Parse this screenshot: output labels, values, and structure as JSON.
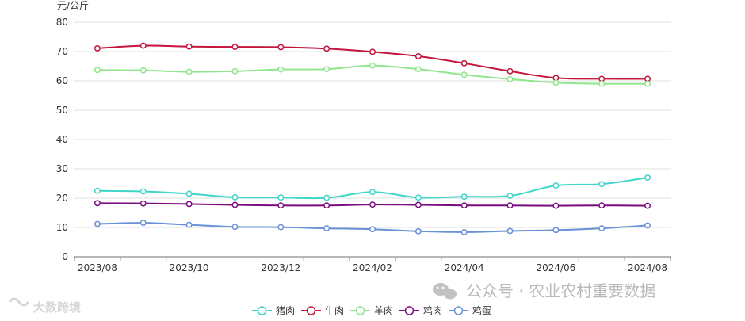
{
  "chart_data": {
    "type": "line",
    "title": "",
    "xlabel": "",
    "ylabel": "元/公斤",
    "ylim": [
      0,
      80
    ],
    "yticks": [
      0,
      10,
      20,
      30,
      40,
      50,
      60,
      70,
      80
    ],
    "grid": true,
    "smooth": true,
    "legend_position": "bottom-center",
    "x": [
      "2023/08",
      "2023/09",
      "2023/10",
      "2023/11",
      "2023/12",
      "2024/01",
      "2024/02",
      "2024/03",
      "2024/04",
      "2024/05",
      "2024/06",
      "2024/07",
      "2024/08"
    ],
    "xtick_labels": [
      "2023/08",
      "2023/10",
      "2023/12",
      "2024/02",
      "2024/04",
      "2024/06",
      "2024/08"
    ],
    "series": [
      {
        "name": "猪肉",
        "color": "#40d5c8",
        "values": [
          22.5,
          22.3,
          21.5,
          20.3,
          20.2,
          20.1,
          22.1,
          20.2,
          20.5,
          20.8,
          24.3,
          24.8,
          27.0
        ]
      },
      {
        "name": "牛肉",
        "color": "#c4163a",
        "values": [
          71.1,
          72.0,
          71.7,
          71.6,
          71.5,
          71.0,
          69.9,
          68.4,
          66.0,
          63.3,
          61.0,
          60.7,
          60.7
        ]
      },
      {
        "name": "羊肉",
        "color": "#90e68c",
        "values": [
          63.7,
          63.6,
          63.1,
          63.3,
          63.9,
          64.0,
          65.2,
          64.0,
          62.1,
          60.6,
          59.4,
          59.0,
          59.0
        ]
      },
      {
        "name": "鸡肉",
        "color": "#7b0c7e",
        "values": [
          18.3,
          18.2,
          18.0,
          17.7,
          17.5,
          17.5,
          17.8,
          17.7,
          17.5,
          17.5,
          17.4,
          17.5,
          17.4
        ]
      },
      {
        "name": "鸡蛋",
        "color": "#6891d8",
        "values": [
          11.2,
          11.6,
          10.9,
          10.2,
          10.1,
          9.7,
          9.4,
          8.7,
          8.4,
          8.8,
          9.1,
          9.7,
          10.7
        ]
      }
    ]
  },
  "watermark": {
    "wechat_text": "公众号 · 农业农村重要数据",
    "brand_text": "大数跨境"
  }
}
